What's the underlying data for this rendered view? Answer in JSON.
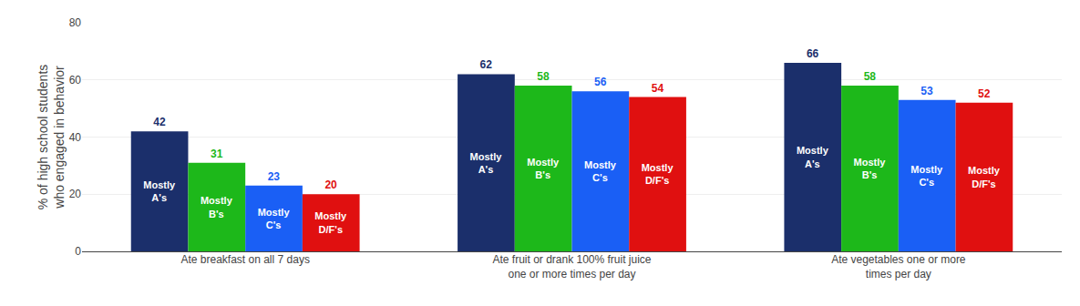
{
  "chart_data": {
    "type": "bar",
    "categories": [
      "Ate breakfast on all 7 days",
      "Ate fruit or drank 100% fruit juice\none or more times per day",
      "Ate vegetables one or more\ntimes per day"
    ],
    "series": [
      {
        "name": "Mostly\nA's",
        "color": "#1b2f6b",
        "values": [
          42,
          62,
          66
        ]
      },
      {
        "name": "Mostly\nB's",
        "color": "#1db81a",
        "values": [
          31,
          58,
          58
        ]
      },
      {
        "name": "Mostly\nC's",
        "color": "#1a5ff5",
        "values": [
          23,
          56,
          53
        ]
      },
      {
        "name": "Mostly\nD/F's",
        "color": "#e01010",
        "values": [
          20,
          54,
          52
        ]
      }
    ],
    "ylabel": "% of high school students\nwho engaged in behavior",
    "ylim": [
      0,
      80
    ],
    "yticks": [
      0,
      20,
      40,
      60,
      80
    ],
    "grid": true,
    "data_labels": true
  }
}
